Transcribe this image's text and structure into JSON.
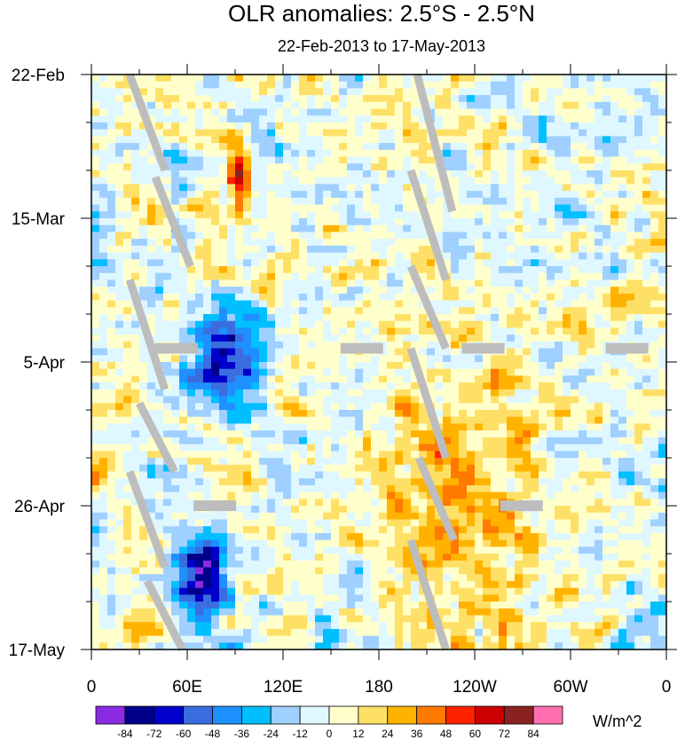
{
  "chart_data": {
    "type": "heatmap",
    "title": "OLR anomalies: 2.5°S - 2.5°N",
    "subtitle": "22-Feb-2013 to 17-May-2013",
    "x_ticks": [
      {
        "label": "0",
        "lon": 0
      },
      {
        "label": "60E",
        "lon": 60
      },
      {
        "label": "120E",
        "lon": 120
      },
      {
        "label": "180",
        "lon": 180
      },
      {
        "label": "120W",
        "lon": 240
      },
      {
        "label": "60W",
        "lon": 300
      },
      {
        "label": "0",
        "lon": 360
      }
    ],
    "y_ticks": [
      {
        "label": "22-Feb",
        "day": 0
      },
      {
        "label": "15-Mar",
        "day": 21
      },
      {
        "label": "5-Apr",
        "day": 42
      },
      {
        "label": "26-Apr",
        "day": 63
      },
      {
        "label": "17-May",
        "day": 84
      }
    ],
    "xlim": [
      0,
      360
    ],
    "ylim_days": [
      0,
      84
    ],
    "colorbar": {
      "unit": "W/m^2",
      "levels": [
        "-84",
        "-72",
        "-60",
        "-48",
        "-36",
        "-24",
        "-12",
        "0",
        "12",
        "24",
        "36",
        "48",
        "60",
        "72",
        "84"
      ],
      "colors": [
        "#8a2be2",
        "#00008b",
        "#0000cd",
        "#3a6ee0",
        "#1e90ff",
        "#00bfff",
        "#9fd0ff",
        "#dff7ff",
        "#ffffcc",
        "#ffe066",
        "#ffb300",
        "#ff7a00",
        "#ff2200",
        "#cc0000",
        "#8b2222",
        "#ff6fb0"
      ]
    },
    "missing_color": "#bdbdbd",
    "features": [
      {
        "type": "positive",
        "lon_range": [
          85,
          100
        ],
        "day_range": [
          10,
          22
        ],
        "peak": 60
      },
      {
        "type": "negative",
        "lon_range": [
          60,
          110
        ],
        "day_range": [
          32,
          50
        ],
        "peak": -72
      },
      {
        "type": "negative",
        "lon_range": [
          50,
          90
        ],
        "day_range": [
          66,
          80
        ],
        "peak": -72
      },
      {
        "type": "positive",
        "lon_range": [
          180,
          300
        ],
        "day_range": [
          40,
          84
        ],
        "peak": 30
      }
    ]
  }
}
